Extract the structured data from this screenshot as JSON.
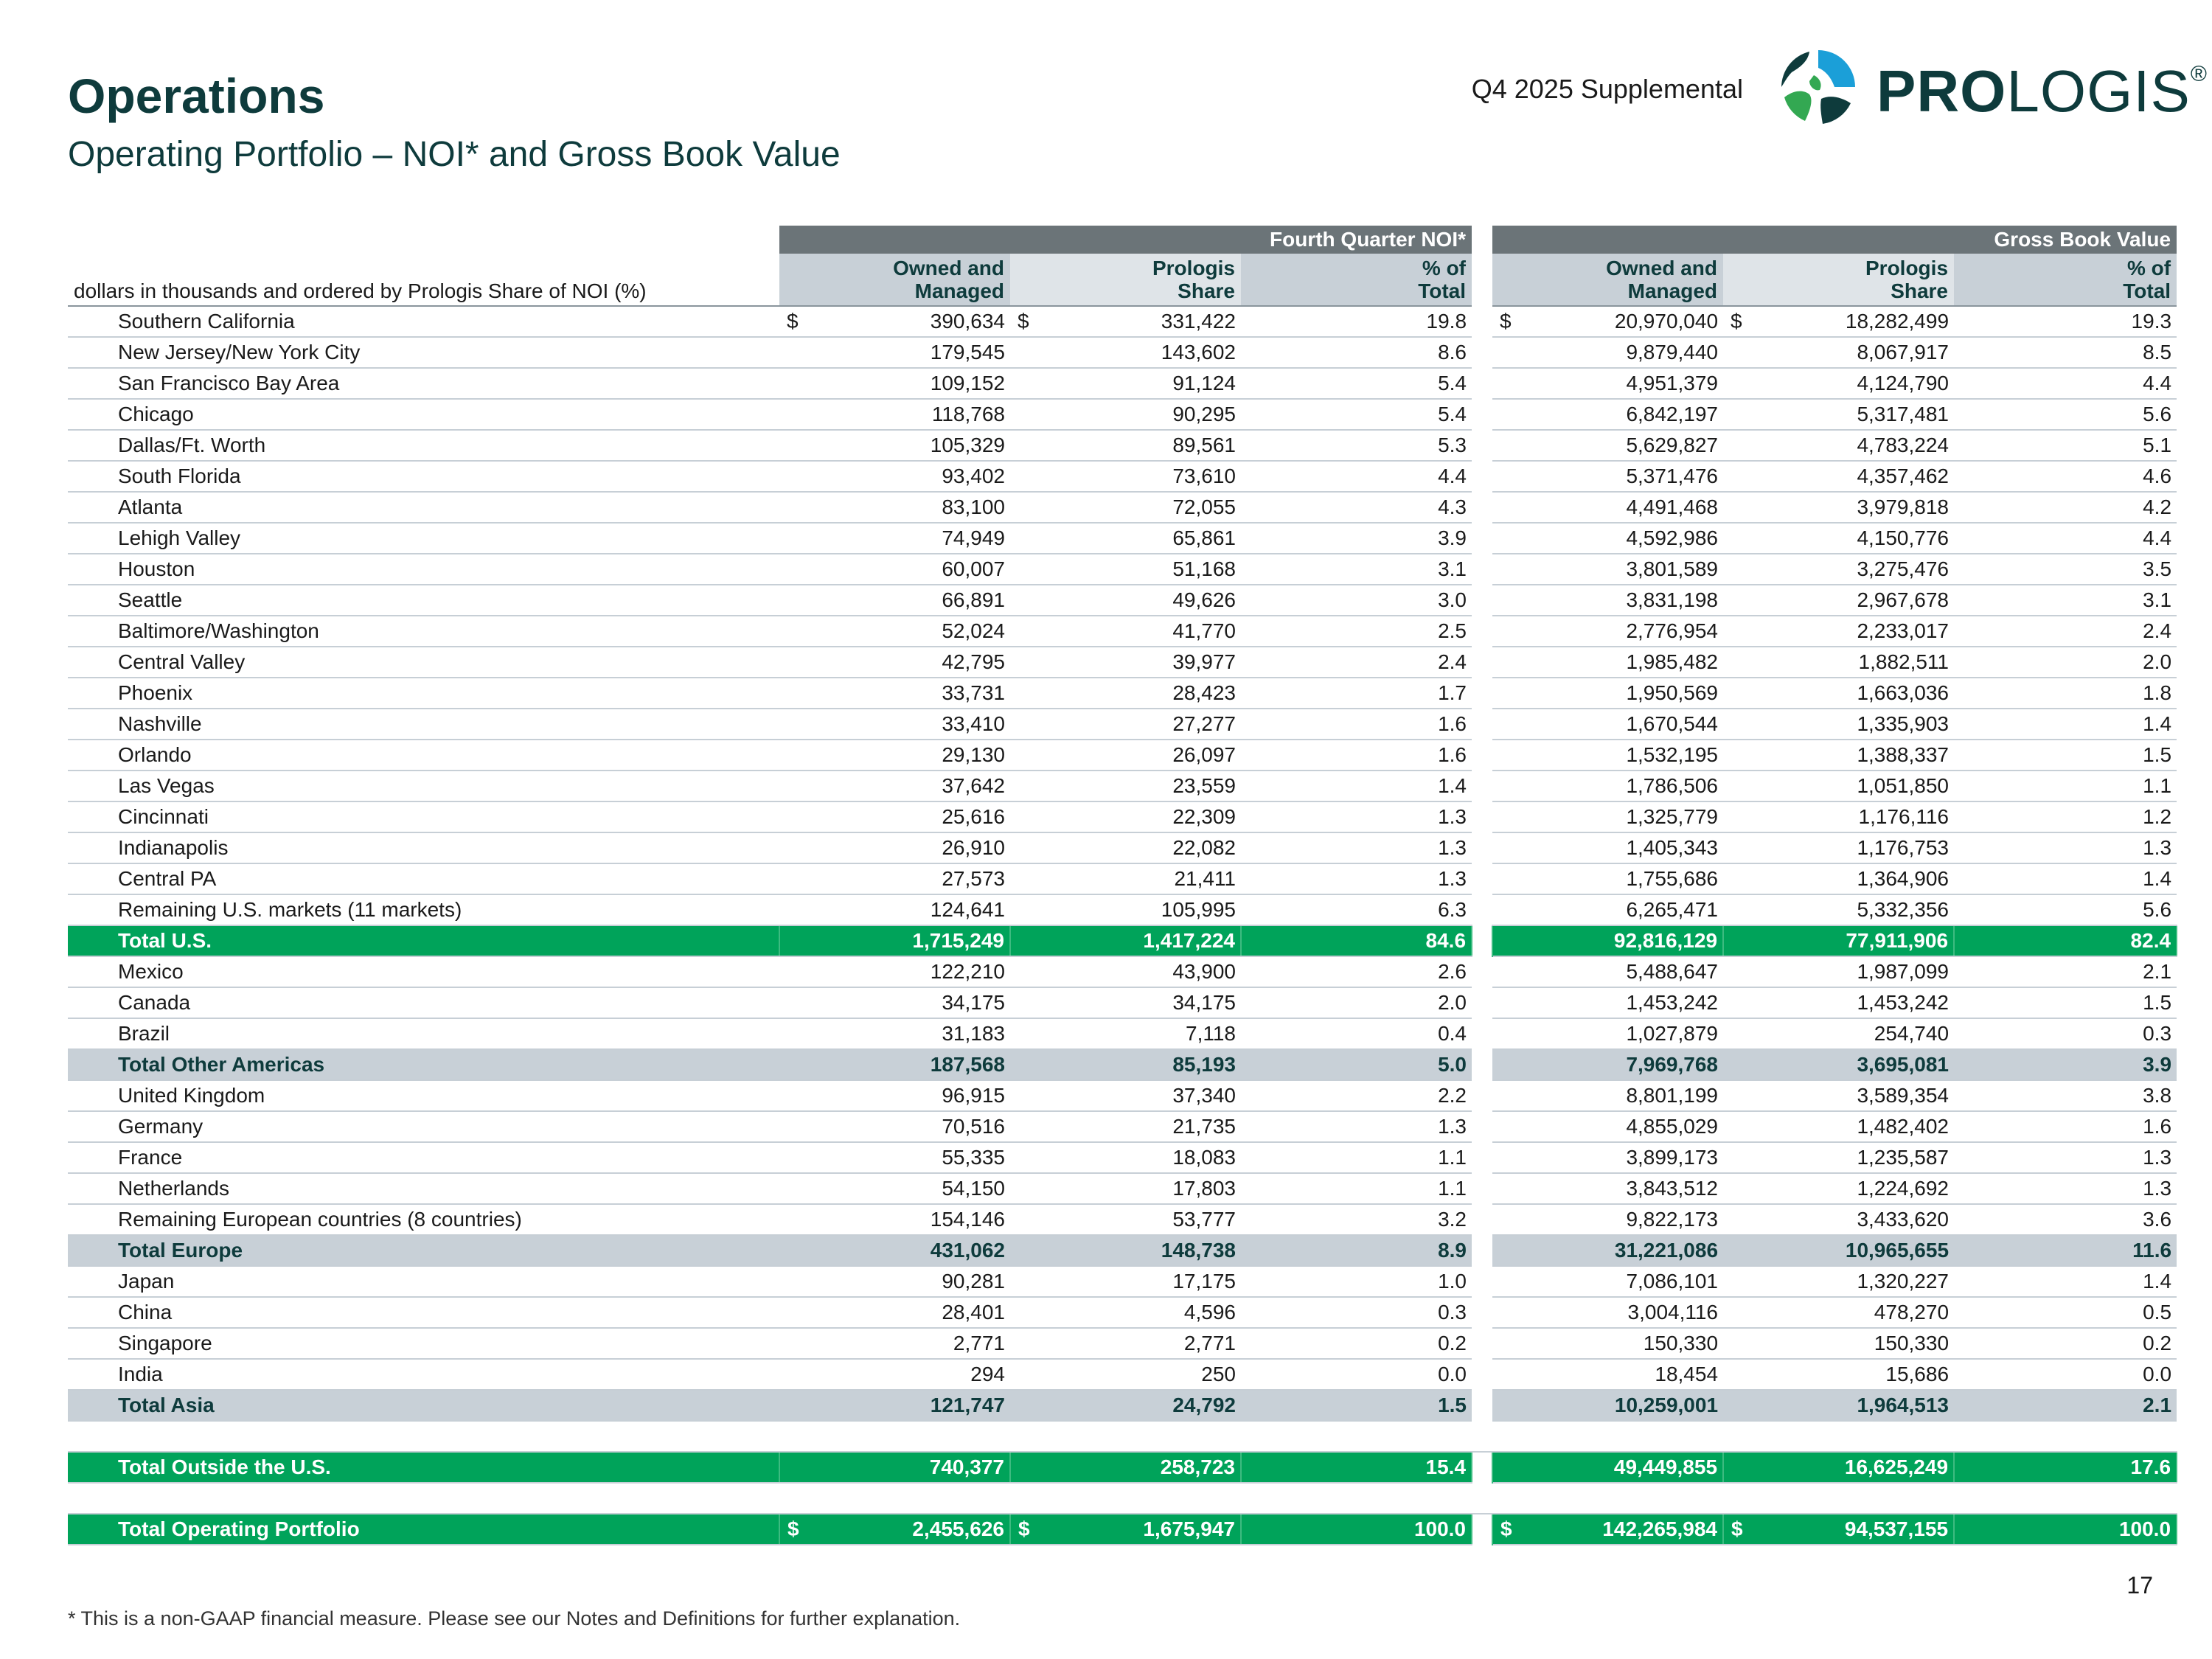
{
  "header": {
    "title": "Operations",
    "subtitle": "Operating Portfolio – NOI* and Gross Book Value",
    "supplemental": "Q4 2025 Supplemental",
    "logo_bold": "PRO",
    "logo_light": "LOGIS",
    "logo_reg": "®"
  },
  "table": {
    "group_noi": "Fourth Quarter NOI*",
    "group_gbv": "Gross Book Value",
    "description": "dollars in thousands and ordered by Prologis Share of NOI (%)",
    "col_owned_1": "Owned and",
    "col_owned_2": "Managed",
    "col_share_1": "Prologis",
    "col_share_2": "Share",
    "col_pct_1": "% of",
    "col_pct_2": "Total",
    "currency": "$",
    "rows": [
      {
        "label": "Southern California",
        "type": "market",
        "noi_owned": "390,634",
        "noi_share": "331,422",
        "noi_pct": "19.8",
        "gbv_owned": "20,970,040",
        "gbv_share": "18,282,499",
        "gbv_pct": "19.3"
      },
      {
        "label": "New Jersey/New York City",
        "type": "market",
        "noi_owned": "179,545",
        "noi_share": "143,602",
        "noi_pct": "8.6",
        "gbv_owned": "9,879,440",
        "gbv_share": "8,067,917",
        "gbv_pct": "8.5"
      },
      {
        "label": "San Francisco Bay Area",
        "type": "market",
        "noi_owned": "109,152",
        "noi_share": "91,124",
        "noi_pct": "5.4",
        "gbv_owned": "4,951,379",
        "gbv_share": "4,124,790",
        "gbv_pct": "4.4"
      },
      {
        "label": "Chicago",
        "type": "market",
        "noi_owned": "118,768",
        "noi_share": "90,295",
        "noi_pct": "5.4",
        "gbv_owned": "6,842,197",
        "gbv_share": "5,317,481",
        "gbv_pct": "5.6"
      },
      {
        "label": "Dallas/Ft. Worth",
        "type": "market",
        "noi_owned": "105,329",
        "noi_share": "89,561",
        "noi_pct": "5.3",
        "gbv_owned": "5,629,827",
        "gbv_share": "4,783,224",
        "gbv_pct": "5.1"
      },
      {
        "label": "South Florida",
        "type": "market",
        "noi_owned": "93,402",
        "noi_share": "73,610",
        "noi_pct": "4.4",
        "gbv_owned": "5,371,476",
        "gbv_share": "4,357,462",
        "gbv_pct": "4.6"
      },
      {
        "label": "Atlanta",
        "type": "market",
        "noi_owned": "83,100",
        "noi_share": "72,055",
        "noi_pct": "4.3",
        "gbv_owned": "4,491,468",
        "gbv_share": "3,979,818",
        "gbv_pct": "4.2"
      },
      {
        "label": "Lehigh Valley",
        "type": "market",
        "noi_owned": "74,949",
        "noi_share": "65,861",
        "noi_pct": "3.9",
        "gbv_owned": "4,592,986",
        "gbv_share": "4,150,776",
        "gbv_pct": "4.4"
      },
      {
        "label": "Houston",
        "type": "market",
        "noi_owned": "60,007",
        "noi_share": "51,168",
        "noi_pct": "3.1",
        "gbv_owned": "3,801,589",
        "gbv_share": "3,275,476",
        "gbv_pct": "3.5"
      },
      {
        "label": "Seattle",
        "type": "market",
        "noi_owned": "66,891",
        "noi_share": "49,626",
        "noi_pct": "3.0",
        "gbv_owned": "3,831,198",
        "gbv_share": "2,967,678",
        "gbv_pct": "3.1"
      },
      {
        "label": "Baltimore/Washington",
        "type": "market",
        "noi_owned": "52,024",
        "noi_share": "41,770",
        "noi_pct": "2.5",
        "gbv_owned": "2,776,954",
        "gbv_share": "2,233,017",
        "gbv_pct": "2.4"
      },
      {
        "label": "Central Valley",
        "type": "market",
        "noi_owned": "42,795",
        "noi_share": "39,977",
        "noi_pct": "2.4",
        "gbv_owned": "1,985,482",
        "gbv_share": "1,882,511",
        "gbv_pct": "2.0"
      },
      {
        "label": "Phoenix",
        "type": "market",
        "noi_owned": "33,731",
        "noi_share": "28,423",
        "noi_pct": "1.7",
        "gbv_owned": "1,950,569",
        "gbv_share": "1,663,036",
        "gbv_pct": "1.8"
      },
      {
        "label": "Nashville",
        "type": "market",
        "noi_owned": "33,410",
        "noi_share": "27,277",
        "noi_pct": "1.6",
        "gbv_owned": "1,670,544",
        "gbv_share": "1,335,903",
        "gbv_pct": "1.4"
      },
      {
        "label": "Orlando",
        "type": "market",
        "noi_owned": "29,130",
        "noi_share": "26,097",
        "noi_pct": "1.6",
        "gbv_owned": "1,532,195",
        "gbv_share": "1,388,337",
        "gbv_pct": "1.5"
      },
      {
        "label": "Las Vegas",
        "type": "market",
        "noi_owned": "37,642",
        "noi_share": "23,559",
        "noi_pct": "1.4",
        "gbv_owned": "1,786,506",
        "gbv_share": "1,051,850",
        "gbv_pct": "1.1"
      },
      {
        "label": "Cincinnati",
        "type": "market",
        "noi_owned": "25,616",
        "noi_share": "22,309",
        "noi_pct": "1.3",
        "gbv_owned": "1,325,779",
        "gbv_share": "1,176,116",
        "gbv_pct": "1.2"
      },
      {
        "label": "Indianapolis",
        "type": "market",
        "noi_owned": "26,910",
        "noi_share": "22,082",
        "noi_pct": "1.3",
        "gbv_owned": "1,405,343",
        "gbv_share": "1,176,753",
        "gbv_pct": "1.3"
      },
      {
        "label": "Central PA",
        "type": "market",
        "noi_owned": "27,573",
        "noi_share": "21,411",
        "noi_pct": "1.3",
        "gbv_owned": "1,755,686",
        "gbv_share": "1,364,906",
        "gbv_pct": "1.4"
      },
      {
        "label": "Remaining U.S. markets (11 markets)",
        "type": "market",
        "noi_owned": "124,641",
        "noi_share": "105,995",
        "noi_pct": "6.3",
        "gbv_owned": "6,265,471",
        "gbv_share": "5,332,356",
        "gbv_pct": "5.6"
      },
      {
        "label": "Total U.S.",
        "type": "total-green",
        "noi_owned": "1,715,249",
        "noi_share": "1,417,224",
        "noi_pct": "84.6",
        "gbv_owned": "92,816,129",
        "gbv_share": "77,911,906",
        "gbv_pct": "82.4"
      },
      {
        "label": "Mexico",
        "type": "market",
        "noi_owned": "122,210",
        "noi_share": "43,900",
        "noi_pct": "2.6",
        "gbv_owned": "5,488,647",
        "gbv_share": "1,987,099",
        "gbv_pct": "2.1"
      },
      {
        "label": "Canada",
        "type": "market",
        "noi_owned": "34,175",
        "noi_share": "34,175",
        "noi_pct": "2.0",
        "gbv_owned": "1,453,242",
        "gbv_share": "1,453,242",
        "gbv_pct": "1.5"
      },
      {
        "label": "Brazil",
        "type": "market",
        "noi_owned": "31,183",
        "noi_share": "7,118",
        "noi_pct": "0.4",
        "gbv_owned": "1,027,879",
        "gbv_share": "254,740",
        "gbv_pct": "0.3"
      },
      {
        "label": "Total Other Americas",
        "type": "total-gray",
        "noi_owned": "187,568",
        "noi_share": "85,193",
        "noi_pct": "5.0",
        "gbv_owned": "7,969,768",
        "gbv_share": "3,695,081",
        "gbv_pct": "3.9"
      },
      {
        "label": "United Kingdom",
        "type": "market",
        "noi_owned": "96,915",
        "noi_share": "37,340",
        "noi_pct": "2.2",
        "gbv_owned": "8,801,199",
        "gbv_share": "3,589,354",
        "gbv_pct": "3.8"
      },
      {
        "label": "Germany",
        "type": "market",
        "noi_owned": "70,516",
        "noi_share": "21,735",
        "noi_pct": "1.3",
        "gbv_owned": "4,855,029",
        "gbv_share": "1,482,402",
        "gbv_pct": "1.6"
      },
      {
        "label": "France",
        "type": "market",
        "noi_owned": "55,335",
        "noi_share": "18,083",
        "noi_pct": "1.1",
        "gbv_owned": "3,899,173",
        "gbv_share": "1,235,587",
        "gbv_pct": "1.3"
      },
      {
        "label": "Netherlands",
        "type": "market",
        "noi_owned": "54,150",
        "noi_share": "17,803",
        "noi_pct": "1.1",
        "gbv_owned": "3,843,512",
        "gbv_share": "1,224,692",
        "gbv_pct": "1.3"
      },
      {
        "label": "Remaining European countries (8 countries)",
        "type": "market",
        "noi_owned": "154,146",
        "noi_share": "53,777",
        "noi_pct": "3.2",
        "gbv_owned": "9,822,173",
        "gbv_share": "3,433,620",
        "gbv_pct": "3.6"
      },
      {
        "label": "Total Europe",
        "type": "total-gray",
        "noi_owned": "431,062",
        "noi_share": "148,738",
        "noi_pct": "8.9",
        "gbv_owned": "31,221,086",
        "gbv_share": "10,965,655",
        "gbv_pct": "11.6"
      },
      {
        "label": "Japan",
        "type": "market",
        "noi_owned": "90,281",
        "noi_share": "17,175",
        "noi_pct": "1.0",
        "gbv_owned": "7,086,101",
        "gbv_share": "1,320,227",
        "gbv_pct": "1.4"
      },
      {
        "label": "China",
        "type": "market",
        "noi_owned": "28,401",
        "noi_share": "4,596",
        "noi_pct": "0.3",
        "gbv_owned": "3,004,116",
        "gbv_share": "478,270",
        "gbv_pct": "0.5"
      },
      {
        "label": "Singapore",
        "type": "market",
        "noi_owned": "2,771",
        "noi_share": "2,771",
        "noi_pct": "0.2",
        "gbv_owned": "150,330",
        "gbv_share": "150,330",
        "gbv_pct": "0.2"
      },
      {
        "label": "India",
        "type": "market",
        "noi_owned": "294",
        "noi_share": "250",
        "noi_pct": "0.0",
        "gbv_owned": "18,454",
        "gbv_share": "15,686",
        "gbv_pct": "0.0"
      },
      {
        "label": "Total Asia",
        "type": "total-gray",
        "noi_owned": "121,747",
        "noi_share": "24,792",
        "noi_pct": "1.5",
        "gbv_owned": "10,259,001",
        "gbv_share": "1,964,513",
        "gbv_pct": "2.1"
      },
      {
        "type": "spacer"
      },
      {
        "label": "Total Outside the U.S.",
        "type": "total-green",
        "noi_owned": "740,377",
        "noi_share": "258,723",
        "noi_pct": "15.4",
        "gbv_owned": "49,449,855",
        "gbv_share": "16,625,249",
        "gbv_pct": "17.6"
      },
      {
        "type": "spacer"
      },
      {
        "label": "Total Operating Portfolio",
        "type": "total-green",
        "currency": true,
        "noi_owned": "2,455,626",
        "noi_share": "1,675,947",
        "noi_pct": "100.0",
        "gbv_owned": "142,265,984",
        "gbv_share": "94,537,155",
        "gbv_pct": "100.0"
      }
    ]
  },
  "footer": {
    "footnote": "* This is a non-GAAP financial measure. Please see our Notes and Definitions for further explanation.",
    "page_number": "17"
  },
  "colors": {
    "title": "#0e3b3c",
    "green_total": "#00a35a",
    "gray_total": "#c8d0d7",
    "group_header": "#6b7478",
    "logo_blue": "#1b9fd8",
    "logo_green": "#33a852"
  }
}
